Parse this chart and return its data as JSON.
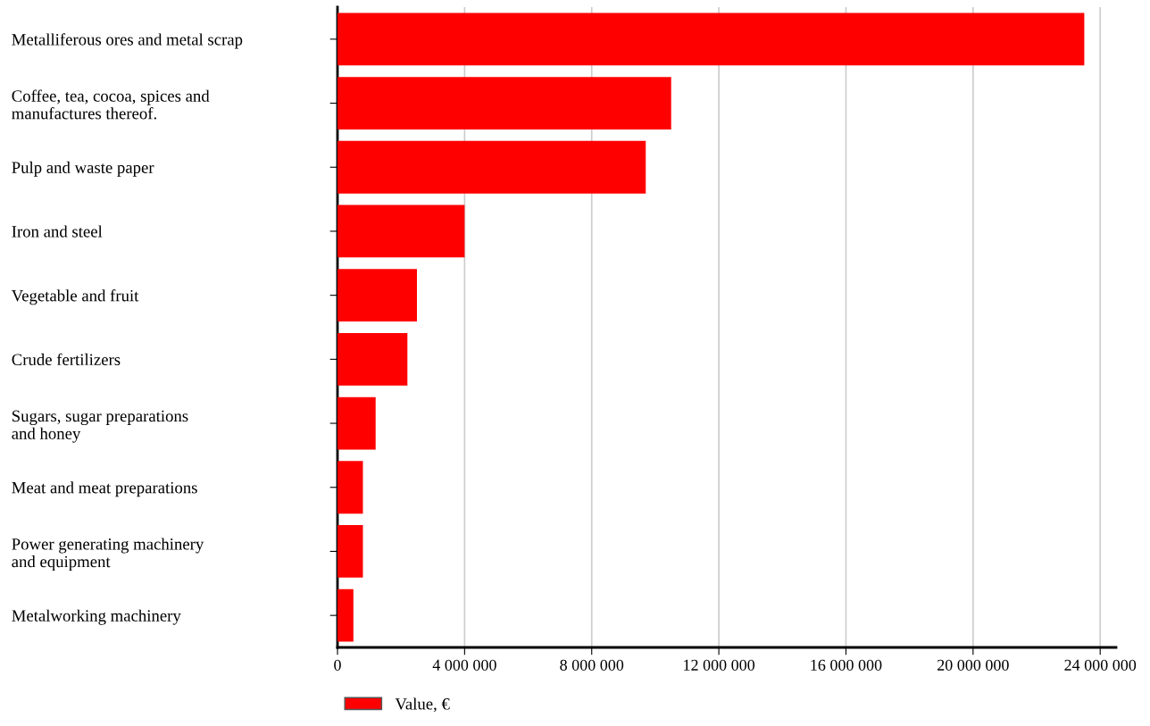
{
  "chart_data": {
    "type": "bar",
    "orientation": "horizontal",
    "categories": [
      "Metalliferous ores and metal scrap",
      "Coffee, tea, cocoa, spices and\nmanufactures thereof.",
      "Pulp and waste paper",
      "Iron and steel",
      "Vegetable and fruit",
      "Crude fertilizers",
      "Sugars, sugar preparations\nand honey",
      "Meat and meat preparations",
      "Power generating machinery\nand equipment",
      "Metalworking machinery"
    ],
    "series": [
      {
        "name": "Value, €",
        "color": "#ff0000",
        "values": [
          23500000,
          10500000,
          9700000,
          4000000,
          2500000,
          2200000,
          1200000,
          800000,
          800000,
          500000
        ]
      }
    ],
    "xlim": [
      0,
      24500000
    ],
    "xticks": [
      {
        "value": 0,
        "label": "0"
      },
      {
        "value": 4000000,
        "label": "4 000 000"
      },
      {
        "value": 8000000,
        "label": "8 000 000"
      },
      {
        "value": 12000000,
        "label": "12 000 000"
      },
      {
        "value": 16000000,
        "label": "16 000 000"
      },
      {
        "value": 20000000,
        "label": "20 000 000"
      },
      {
        "value": 24000000,
        "label": "24 000 000"
      }
    ],
    "grid": "x",
    "legend": "bottom left"
  }
}
